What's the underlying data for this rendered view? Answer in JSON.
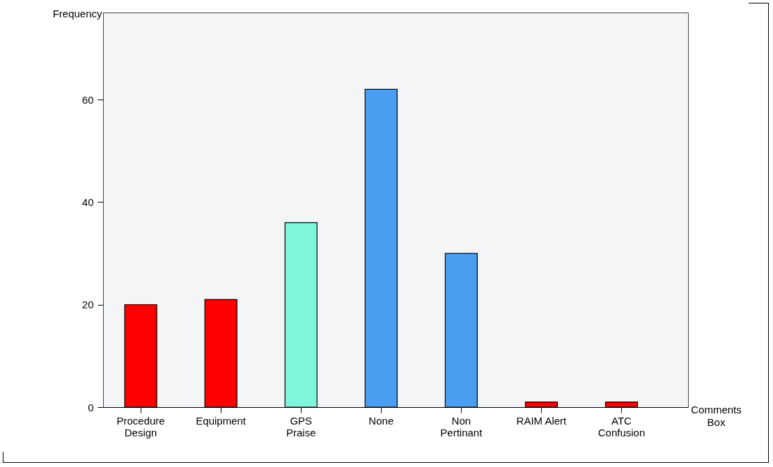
{
  "chart_data": {
    "type": "bar",
    "xlabel": "Comments Box",
    "ylabel": "Frequency",
    "categories": [
      "Procedure\nDesign",
      "Equipment",
      "GPS\nPraise",
      "None",
      "Non\nPertinant",
      "RAIM Alert",
      "ATC\nConfusion"
    ],
    "values": [
      20,
      21,
      36,
      62,
      30,
      1,
      1
    ],
    "colors": [
      "#ff0000",
      "#ff0000",
      "#7ff5dc",
      "#4a9ef2",
      "#4a9ef2",
      "#ff0000",
      "#ff0000"
    ],
    "ylim": [
      0,
      77
    ],
    "yticks": [
      0,
      20,
      40,
      60
    ],
    "grid": false
  }
}
